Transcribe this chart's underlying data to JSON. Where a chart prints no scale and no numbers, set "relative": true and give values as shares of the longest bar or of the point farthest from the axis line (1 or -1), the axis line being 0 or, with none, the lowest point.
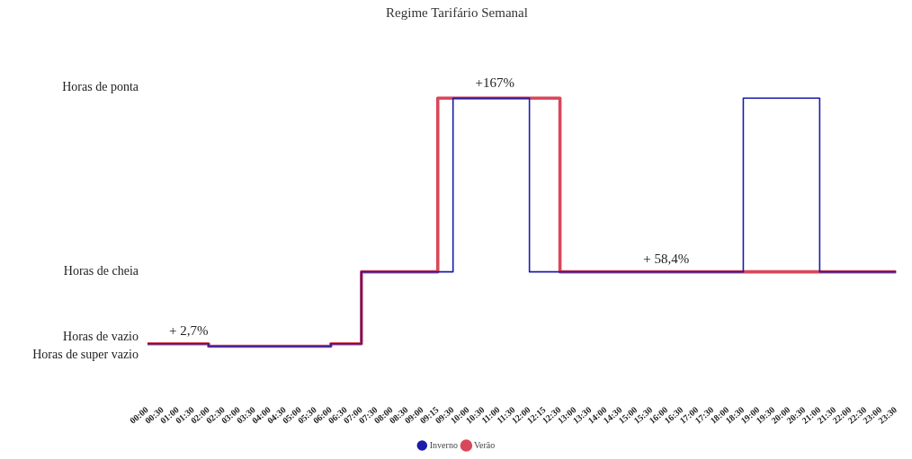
{
  "chart_data": {
    "type": "step",
    "title": "Regime Tarifário Semanal",
    "categories": [
      "00:00",
      "00:30",
      "01:00",
      "01:30",
      "02:00",
      "02:30",
      "03:00",
      "03:30",
      "04:00",
      "04:30",
      "05:00",
      "05:30",
      "06:00",
      "06:30",
      "07:00",
      "07:30",
      "08:00",
      "08:30",
      "09:00",
      "09:15",
      "09:30",
      "10:00",
      "10:30",
      "11:00",
      "11:30",
      "12:00",
      "12:15",
      "12:30",
      "13:00",
      "13:30",
      "14:00",
      "14:30",
      "15:00",
      "15:30",
      "16:00",
      "16:30",
      "17:00",
      "17:30",
      "18:00",
      "18:30",
      "19:00",
      "19:30",
      "20:00",
      "20:30",
      "21:00",
      "21:30",
      "22:00",
      "22:30",
      "23:00",
      "23:30"
    ],
    "relative": true,
    "series": [
      {
        "name": "Inverno",
        "color": "#1c1ca8",
        "values": [
          0.01,
          0.01,
          0.01,
          0.01,
          0,
          0,
          0,
          0,
          0,
          0,
          0,
          0,
          0.01,
          0.01,
          0.3,
          0.3,
          0.3,
          0.3,
          0.3,
          0.3,
          1,
          1,
          1,
          1,
          1,
          0.3,
          0.3,
          0.3,
          0.3,
          0.3,
          0.3,
          0.3,
          0.3,
          0.3,
          0.3,
          0.3,
          0.3,
          0.3,
          0.3,
          1,
          1,
          1,
          1,
          1,
          0.3,
          0.3,
          0.3,
          0.3,
          0.3,
          0.3
        ]
      },
      {
        "name": "Verão",
        "color": "#d9475a",
        "values": [
          0.01,
          0.01,
          0.01,
          0.01,
          0,
          0,
          0,
          0,
          0,
          0,
          0,
          0,
          0.01,
          0.01,
          0.3,
          0.3,
          0.3,
          0.3,
          0.3,
          1,
          1,
          1,
          1,
          1,
          1,
          1,
          1,
          0.3,
          0.3,
          0.3,
          0.3,
          0.3,
          0.3,
          0.3,
          0.3,
          0.3,
          0.3,
          0.3,
          0.3,
          0.3,
          0.3,
          0.3,
          0.3,
          0.3,
          0.3,
          0.3,
          0.3,
          0.3,
          0.3,
          0.3
        ]
      }
    ],
    "annotations": [
      "Horas de ponta",
      "Horas de cheia",
      "Horas de vazio",
      "Horas de super vazio",
      "+167%",
      "+ 2,7%",
      "+ 58,4%"
    ],
    "legend": "bottom",
    "marker": "none",
    "line_style": "solid"
  }
}
